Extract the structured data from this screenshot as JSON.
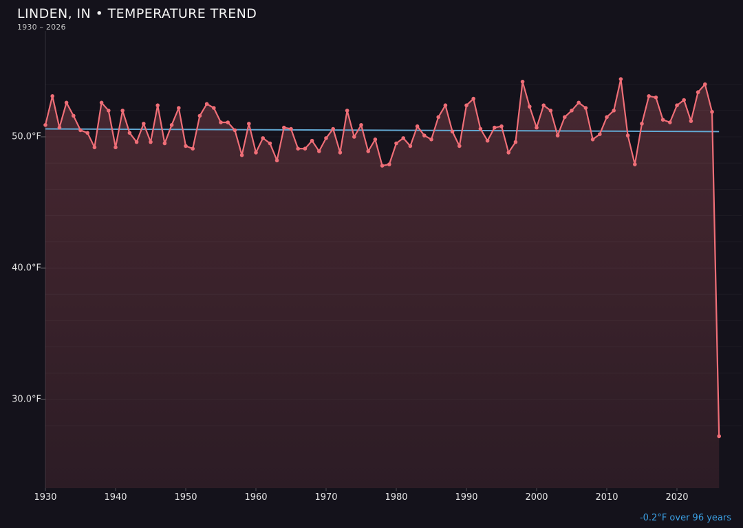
{
  "header": {
    "title": "LINDEN, IN • TEMPERATURE TREND",
    "subtitle": "1930 – 2026"
  },
  "footer": {
    "trend_label": "-0.2°F over 96 years"
  },
  "colors": {
    "background": "#14121b",
    "series": "#ef6e77",
    "trend": "#62a8d2",
    "footer_text": "#3ba0e4",
    "axis_text": "#e4e4e4",
    "title_text": "#f2f2f2",
    "subtitle_text": "#c4c4c4"
  },
  "chart_data": {
    "type": "line",
    "title": "LINDEN, IN • TEMPERATURE TREND",
    "subtitle": "1930 – 2026",
    "unit": "°F",
    "x_start_year": 1930,
    "x_end_year": 2026,
    "values": [
      50.9,
      53.1,
      50.7,
      52.6,
      51.6,
      50.5,
      50.3,
      49.2,
      52.6,
      52.0,
      49.2,
      52.0,
      50.3,
      49.6,
      51.0,
      49.6,
      52.4,
      49.5,
      50.9,
      52.2,
      49.3,
      49.1,
      51.6,
      52.5,
      52.2,
      51.1,
      51.1,
      50.5,
      48.6,
      51.0,
      48.8,
      49.9,
      49.5,
      48.2,
      50.7,
      50.6,
      49.1,
      49.1,
      49.7,
      48.9,
      49.9,
      50.6,
      48.8,
      52.0,
      50.0,
      50.9,
      48.9,
      49.8,
      47.8,
      47.9,
      49.5,
      49.9,
      49.3,
      50.8,
      50.1,
      49.8,
      51.5,
      52.4,
      50.4,
      49.3,
      52.4,
      52.9,
      50.6,
      49.7,
      50.7,
      50.8,
      48.8,
      49.6,
      54.2,
      52.3,
      50.7,
      52.4,
      52.0,
      50.1,
      51.5,
      52.0,
      52.6,
      52.2,
      49.8,
      50.2,
      51.5,
      52.0,
      54.4,
      50.1,
      47.9,
      51.0,
      53.1,
      53.0,
      51.3,
      51.1,
      52.4,
      52.8,
      51.2,
      53.4,
      54.0,
      51.9,
      27.2
    ],
    "x_ticks": [
      1930,
      1940,
      1950,
      1960,
      1970,
      1980,
      1990,
      2000,
      2010,
      2020
    ],
    "y_ticks": [
      {
        "value": 50,
        "label": "50.0°F"
      },
      {
        "value": 40,
        "label": "40.0°F"
      },
      {
        "value": 30,
        "label": "30.0°F"
      }
    ],
    "grid_step_deg": 2,
    "grid_top_value": 54,
    "grid_bottom_value": 28,
    "trend_line": {
      "start_value": 50.6,
      "end_value": 50.4,
      "change_deg": -0.2,
      "span_years": 96,
      "label": "-0.2°F over 96 years"
    },
    "legend": "none",
    "grid": "faint horizontal"
  }
}
